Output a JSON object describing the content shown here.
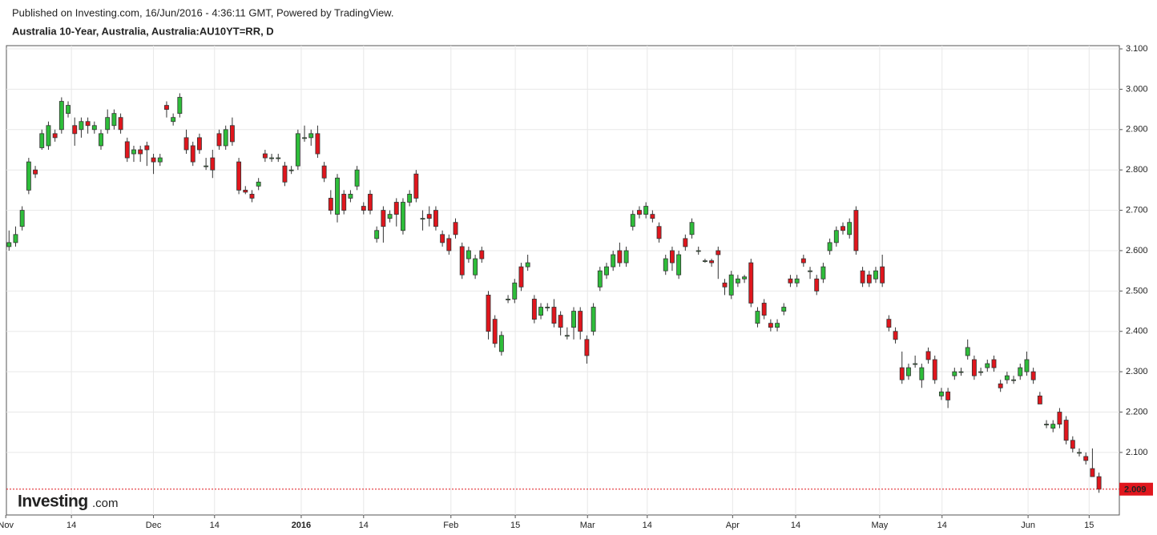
{
  "chart_data": {
    "type": "candlestick",
    "published": "Published on Investing.com, 16/Jun/2016 - 4:36:11 GMT, Powered by TradingView.",
    "title": "Australia 10-Year, Australia, Australia:AU10YT=RR, D",
    "logo": {
      "brand": "Investing",
      "suffix": ".com"
    },
    "up_color": "#2ebd3a",
    "down_color": "#e0161d",
    "grid": true,
    "ylim": [
      1.945,
      3.108
    ],
    "yticks": [
      {
        "value": 2.1,
        "label": "2.100"
      },
      {
        "value": 2.2,
        "label": "2.200"
      },
      {
        "value": 2.3,
        "label": "2.300"
      },
      {
        "value": 2.4,
        "label": "2.400"
      },
      {
        "value": 2.5,
        "label": "2.500"
      },
      {
        "value": 2.6,
        "label": "2.600"
      },
      {
        "value": 2.7,
        "label": "2.700"
      },
      {
        "value": 2.8,
        "label": "2.800"
      },
      {
        "value": 2.9,
        "label": "2.900"
      },
      {
        "value": 3.0,
        "label": "3.000"
      },
      {
        "value": 3.1,
        "label": "3.100"
      }
    ],
    "xlim": [
      -0.4,
      169.1
    ],
    "xticks": [
      {
        "value": -0.5,
        "label": "Nov"
      },
      {
        "value": 9.5,
        "label": "14"
      },
      {
        "value": 22,
        "label": "Dec"
      },
      {
        "value": 31.3,
        "label": "14"
      },
      {
        "value": 44.5,
        "label": "2016"
      },
      {
        "value": 54,
        "label": "14"
      },
      {
        "value": 67.3,
        "label": "Feb"
      },
      {
        "value": 77.1,
        "label": "15"
      },
      {
        "value": 88.1,
        "label": "Mar"
      },
      {
        "value": 97.2,
        "label": "14"
      },
      {
        "value": 110.2,
        "label": "Apr"
      },
      {
        "value": 119.8,
        "label": "14"
      },
      {
        "value": 132.6,
        "label": "May"
      },
      {
        "value": 142.1,
        "label": "14"
      },
      {
        "value": 155.2,
        "label": "Jun"
      },
      {
        "value": 164.5,
        "label": "15"
      }
    ],
    "last_price": 2.009,
    "ohlc": [
      [
        2.61,
        2.65,
        2.6,
        2.62
      ],
      [
        2.62,
        2.66,
        2.61,
        2.64
      ],
      [
        2.66,
        2.71,
        2.65,
        2.7
      ],
      [
        2.75,
        2.83,
        2.74,
        2.82
      ],
      [
        2.8,
        2.81,
        2.78,
        2.79
      ],
      [
        2.855,
        2.9,
        2.85,
        2.89
      ],
      [
        2.86,
        2.92,
        2.85,
        2.91
      ],
      [
        2.89,
        2.9,
        2.87,
        2.88
      ],
      [
        2.9,
        2.98,
        2.89,
        2.97
      ],
      [
        2.94,
        2.97,
        2.93,
        2.96
      ],
      [
        2.91,
        2.93,
        2.86,
        2.89
      ],
      [
        2.9,
        2.93,
        2.88,
        2.92
      ],
      [
        2.92,
        2.93,
        2.89,
        2.91
      ],
      [
        2.9,
        2.92,
        2.89,
        2.91
      ],
      [
        2.86,
        2.9,
        2.85,
        2.89
      ],
      [
        2.9,
        2.95,
        2.89,
        2.93
      ],
      [
        2.91,
        2.95,
        2.9,
        2.94
      ],
      [
        2.93,
        2.94,
        2.89,
        2.9
      ],
      [
        2.87,
        2.88,
        2.82,
        2.83
      ],
      [
        2.84,
        2.86,
        2.82,
        2.85
      ],
      [
        2.85,
        2.86,
        2.82,
        2.84
      ],
      [
        2.86,
        2.87,
        2.81,
        2.85
      ],
      [
        2.83,
        2.84,
        2.79,
        2.82
      ],
      [
        2.82,
        2.84,
        2.81,
        2.83
      ],
      [
        2.96,
        2.97,
        2.93,
        2.95
      ],
      [
        2.92,
        2.94,
        2.91,
        2.93
      ],
      [
        2.94,
        2.99,
        2.93,
        2.98
      ],
      [
        2.88,
        2.9,
        2.84,
        2.85
      ],
      [
        2.86,
        2.87,
        2.81,
        2.82
      ],
      [
        2.88,
        2.89,
        2.84,
        2.85
      ],
      [
        2.81,
        2.83,
        2.8,
        2.81
      ],
      [
        2.83,
        2.85,
        2.78,
        2.8
      ],
      [
        2.89,
        2.9,
        2.85,
        2.86
      ],
      [
        2.86,
        2.91,
        2.85,
        2.9
      ],
      [
        2.91,
        2.93,
        2.86,
        2.87
      ],
      [
        2.82,
        2.83,
        2.74,
        2.75
      ],
      [
        2.75,
        2.76,
        2.74,
        2.745
      ],
      [
        2.74,
        2.75,
        2.72,
        2.73
      ],
      [
        2.76,
        2.78,
        2.75,
        2.77
      ],
      [
        2.84,
        2.85,
        2.82,
        2.83
      ],
      [
        2.83,
        2.84,
        2.82,
        2.83
      ],
      [
        2.83,
        2.84,
        2.82,
        2.83
      ],
      [
        2.81,
        2.82,
        2.76,
        2.77
      ],
      [
        2.8,
        2.81,
        2.79,
        2.8
      ],
      [
        2.81,
        2.9,
        2.8,
        2.89
      ],
      [
        2.88,
        2.91,
        2.87,
        2.88
      ],
      [
        2.88,
        2.9,
        2.86,
        2.89
      ],
      [
        2.89,
        2.91,
        2.83,
        2.84
      ],
      [
        2.81,
        2.82,
        2.77,
        2.78
      ],
      [
        2.73,
        2.75,
        2.69,
        2.7
      ],
      [
        2.69,
        2.79,
        2.67,
        2.78
      ],
      [
        2.74,
        2.75,
        2.69,
        2.7
      ],
      [
        2.73,
        2.75,
        2.72,
        2.74
      ],
      [
        2.76,
        2.81,
        2.75,
        2.8
      ],
      [
        2.71,
        2.72,
        2.69,
        2.7
      ],
      [
        2.74,
        2.75,
        2.69,
        2.7
      ],
      [
        2.63,
        2.66,
        2.62,
        2.65
      ],
      [
        2.7,
        2.71,
        2.62,
        2.66
      ],
      [
        2.68,
        2.7,
        2.67,
        2.69
      ],
      [
        2.72,
        2.73,
        2.66,
        2.69
      ],
      [
        2.65,
        2.73,
        2.64,
        2.72
      ],
      [
        2.72,
        2.75,
        2.71,
        2.74
      ],
      [
        2.79,
        2.8,
        2.72,
        2.73
      ],
      [
        2.68,
        2.7,
        2.65,
        2.68
      ],
      [
        2.69,
        2.71,
        2.66,
        2.68
      ],
      [
        2.7,
        2.71,
        2.65,
        2.66
      ],
      [
        2.64,
        2.65,
        2.61,
        2.62
      ],
      [
        2.63,
        2.64,
        2.59,
        2.6
      ],
      [
        2.67,
        2.68,
        2.63,
        2.64
      ],
      [
        2.61,
        2.62,
        2.53,
        2.54
      ],
      [
        2.58,
        2.61,
        2.57,
        2.6
      ],
      [
        2.54,
        2.59,
        2.53,
        2.58
      ],
      [
        2.6,
        2.61,
        2.57,
        2.58
      ],
      [
        2.49,
        2.5,
        2.38,
        2.4
      ],
      [
        2.43,
        2.44,
        2.36,
        2.37
      ],
      [
        2.35,
        2.4,
        2.34,
        2.39
      ],
      [
        2.48,
        2.49,
        2.47,
        2.48
      ],
      [
        2.48,
        2.53,
        2.47,
        2.52
      ],
      [
        2.56,
        2.57,
        2.5,
        2.51
      ],
      [
        2.56,
        2.59,
        2.55,
        2.57
      ],
      [
        2.48,
        2.49,
        2.42,
        2.43
      ],
      [
        2.44,
        2.47,
        2.43,
        2.46
      ],
      [
        2.46,
        2.47,
        2.45,
        2.46
      ],
      [
        2.46,
        2.48,
        2.41,
        2.42
      ],
      [
        2.44,
        2.45,
        2.39,
        2.41
      ],
      [
        2.39,
        2.41,
        2.38,
        2.39
      ],
      [
        2.41,
        2.46,
        2.38,
        2.45
      ],
      [
        2.45,
        2.46,
        2.38,
        2.4
      ],
      [
        2.38,
        2.39,
        2.32,
        2.34
      ],
      [
        2.4,
        2.47,
        2.39,
        2.46
      ],
      [
        2.51,
        2.56,
        2.5,
        2.55
      ],
      [
        2.54,
        2.57,
        2.53,
        2.56
      ],
      [
        2.56,
        2.6,
        2.55,
        2.59
      ],
      [
        2.6,
        2.62,
        2.56,
        2.57
      ],
      [
        2.57,
        2.61,
        2.56,
        2.6
      ],
      [
        2.66,
        2.7,
        2.65,
        2.69
      ],
      [
        2.7,
        2.71,
        2.68,
        2.69
      ],
      [
        2.69,
        2.72,
        2.68,
        2.71
      ],
      [
        2.69,
        2.7,
        2.67,
        2.68
      ],
      [
        2.66,
        2.67,
        2.62,
        2.63
      ],
      [
        2.55,
        2.59,
        2.54,
        2.58
      ],
      [
        2.6,
        2.61,
        2.55,
        2.57
      ],
      [
        2.54,
        2.6,
        2.53,
        2.59
      ],
      [
        2.63,
        2.64,
        2.6,
        2.61
      ],
      [
        2.64,
        2.68,
        2.63,
        2.67
      ],
      [
        2.6,
        2.61,
        2.59,
        2.6
      ],
      [
        2.575,
        2.58,
        2.57,
        2.575
      ],
      [
        2.575,
        2.58,
        2.56,
        2.57
      ],
      [
        2.6,
        2.61,
        2.53,
        2.59
      ],
      [
        2.52,
        2.53,
        2.49,
        2.51
      ],
      [
        2.49,
        2.55,
        2.48,
        2.54
      ],
      [
        2.52,
        2.54,
        2.51,
        2.53
      ],
      [
        2.53,
        2.54,
        2.52,
        2.535
      ],
      [
        2.57,
        2.58,
        2.46,
        2.47
      ],
      [
        2.42,
        2.46,
        2.41,
        2.45
      ],
      [
        2.47,
        2.48,
        2.43,
        2.44
      ],
      [
        2.42,
        2.43,
        2.4,
        2.41
      ],
      [
        2.41,
        2.43,
        2.4,
        2.42
      ],
      [
        2.45,
        2.47,
        2.44,
        2.46
      ],
      [
        2.53,
        2.54,
        2.51,
        2.52
      ],
      [
        2.52,
        2.54,
        2.51,
        2.53
      ],
      [
        2.58,
        2.59,
        2.56,
        2.57
      ],
      [
        2.55,
        2.56,
        2.53,
        2.55
      ],
      [
        2.53,
        2.54,
        2.49,
        2.5
      ],
      [
        2.53,
        2.57,
        2.52,
        2.56
      ],
      [
        2.6,
        2.63,
        2.59,
        2.62
      ],
      [
        2.62,
        2.66,
        2.61,
        2.65
      ],
      [
        2.66,
        2.67,
        2.64,
        2.65
      ],
      [
        2.64,
        2.68,
        2.63,
        2.67
      ],
      [
        2.7,
        2.71,
        2.59,
        2.6
      ],
      [
        2.55,
        2.56,
        2.51,
        2.52
      ],
      [
        2.54,
        2.55,
        2.51,
        2.52
      ],
      [
        2.53,
        2.56,
        2.52,
        2.55
      ],
      [
        2.56,
        2.59,
        2.51,
        2.52
      ],
      [
        2.43,
        2.44,
        2.4,
        2.41
      ],
      [
        2.4,
        2.41,
        2.37,
        2.38
      ],
      [
        2.31,
        2.35,
        2.27,
        2.28
      ],
      [
        2.29,
        2.32,
        2.28,
        2.31
      ],
      [
        2.32,
        2.34,
        2.31,
        2.32
      ],
      [
        2.28,
        2.32,
        2.26,
        2.31
      ],
      [
        2.35,
        2.36,
        2.32,
        2.33
      ],
      [
        2.33,
        2.34,
        2.27,
        2.28
      ],
      [
        2.24,
        2.26,
        2.23,
        2.25
      ],
      [
        2.25,
        2.26,
        2.21,
        2.23
      ],
      [
        2.29,
        2.31,
        2.28,
        2.3
      ],
      [
        2.3,
        2.31,
        2.29,
        2.3
      ],
      [
        2.34,
        2.38,
        2.33,
        2.36
      ],
      [
        2.33,
        2.34,
        2.28,
        2.29
      ],
      [
        2.3,
        2.31,
        2.29,
        2.3
      ],
      [
        2.31,
        2.33,
        2.3,
        2.32
      ],
      [
        2.33,
        2.34,
        2.3,
        2.31
      ],
      [
        2.27,
        2.28,
        2.25,
        2.26
      ],
      [
        2.28,
        2.3,
        2.27,
        2.29
      ],
      [
        2.28,
        2.29,
        2.27,
        2.28
      ],
      [
        2.29,
        2.32,
        2.28,
        2.31
      ],
      [
        2.3,
        2.35,
        2.29,
        2.33
      ],
      [
        2.3,
        2.31,
        2.27,
        2.28
      ],
      [
        2.24,
        2.25,
        2.22,
        2.22
      ],
      [
        2.17,
        2.18,
        2.16,
        2.17
      ],
      [
        2.16,
        2.18,
        2.15,
        2.17
      ],
      [
        2.2,
        2.21,
        2.16,
        2.17
      ],
      [
        2.18,
        2.19,
        2.12,
        2.13
      ],
      [
        2.13,
        2.14,
        2.1,
        2.11
      ],
      [
        2.1,
        2.11,
        2.09,
        2.1
      ],
      [
        2.09,
        2.1,
        2.07,
        2.08
      ],
      [
        2.06,
        2.11,
        2.04,
        2.04
      ],
      [
        2.04,
        2.05,
        2.0,
        2.009
      ]
    ]
  }
}
